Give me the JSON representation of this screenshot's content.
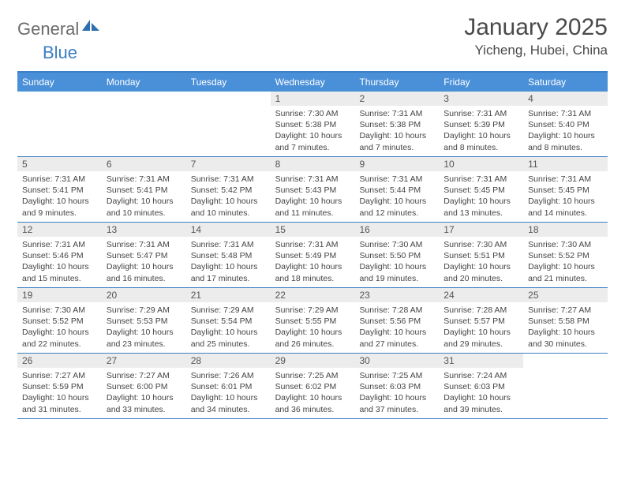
{
  "brand": {
    "general": "General",
    "blue": "Blue"
  },
  "title": "January 2025",
  "location": "Yicheng, Hubei, China",
  "colors": {
    "header_bg": "#4a90d9",
    "rule": "#3b7fc4",
    "dayshade": "#ececec",
    "text": "#444444",
    "logo_gray": "#6b6b6b",
    "logo_blue": "#3b7fc4"
  },
  "day_headers": [
    "Sunday",
    "Monday",
    "Tuesday",
    "Wednesday",
    "Thursday",
    "Friday",
    "Saturday"
  ],
  "weeks": [
    [
      {
        "n": "",
        "lines": []
      },
      {
        "n": "",
        "lines": []
      },
      {
        "n": "",
        "lines": []
      },
      {
        "n": "1",
        "lines": [
          "Sunrise: 7:30 AM",
          "Sunset: 5:38 PM",
          "Daylight: 10 hours",
          "and 7 minutes."
        ]
      },
      {
        "n": "2",
        "lines": [
          "Sunrise: 7:31 AM",
          "Sunset: 5:38 PM",
          "Daylight: 10 hours",
          "and 7 minutes."
        ]
      },
      {
        "n": "3",
        "lines": [
          "Sunrise: 7:31 AM",
          "Sunset: 5:39 PM",
          "Daylight: 10 hours",
          "and 8 minutes."
        ]
      },
      {
        "n": "4",
        "lines": [
          "Sunrise: 7:31 AM",
          "Sunset: 5:40 PM",
          "Daylight: 10 hours",
          "and 8 minutes."
        ]
      }
    ],
    [
      {
        "n": "5",
        "lines": [
          "Sunrise: 7:31 AM",
          "Sunset: 5:41 PM",
          "Daylight: 10 hours",
          "and 9 minutes."
        ]
      },
      {
        "n": "6",
        "lines": [
          "Sunrise: 7:31 AM",
          "Sunset: 5:41 PM",
          "Daylight: 10 hours",
          "and 10 minutes."
        ]
      },
      {
        "n": "7",
        "lines": [
          "Sunrise: 7:31 AM",
          "Sunset: 5:42 PM",
          "Daylight: 10 hours",
          "and 10 minutes."
        ]
      },
      {
        "n": "8",
        "lines": [
          "Sunrise: 7:31 AM",
          "Sunset: 5:43 PM",
          "Daylight: 10 hours",
          "and 11 minutes."
        ]
      },
      {
        "n": "9",
        "lines": [
          "Sunrise: 7:31 AM",
          "Sunset: 5:44 PM",
          "Daylight: 10 hours",
          "and 12 minutes."
        ]
      },
      {
        "n": "10",
        "lines": [
          "Sunrise: 7:31 AM",
          "Sunset: 5:45 PM",
          "Daylight: 10 hours",
          "and 13 minutes."
        ]
      },
      {
        "n": "11",
        "lines": [
          "Sunrise: 7:31 AM",
          "Sunset: 5:45 PM",
          "Daylight: 10 hours",
          "and 14 minutes."
        ]
      }
    ],
    [
      {
        "n": "12",
        "lines": [
          "Sunrise: 7:31 AM",
          "Sunset: 5:46 PM",
          "Daylight: 10 hours",
          "and 15 minutes."
        ]
      },
      {
        "n": "13",
        "lines": [
          "Sunrise: 7:31 AM",
          "Sunset: 5:47 PM",
          "Daylight: 10 hours",
          "and 16 minutes."
        ]
      },
      {
        "n": "14",
        "lines": [
          "Sunrise: 7:31 AM",
          "Sunset: 5:48 PM",
          "Daylight: 10 hours",
          "and 17 minutes."
        ]
      },
      {
        "n": "15",
        "lines": [
          "Sunrise: 7:31 AM",
          "Sunset: 5:49 PM",
          "Daylight: 10 hours",
          "and 18 minutes."
        ]
      },
      {
        "n": "16",
        "lines": [
          "Sunrise: 7:30 AM",
          "Sunset: 5:50 PM",
          "Daylight: 10 hours",
          "and 19 minutes."
        ]
      },
      {
        "n": "17",
        "lines": [
          "Sunrise: 7:30 AM",
          "Sunset: 5:51 PM",
          "Daylight: 10 hours",
          "and 20 minutes."
        ]
      },
      {
        "n": "18",
        "lines": [
          "Sunrise: 7:30 AM",
          "Sunset: 5:52 PM",
          "Daylight: 10 hours",
          "and 21 minutes."
        ]
      }
    ],
    [
      {
        "n": "19",
        "lines": [
          "Sunrise: 7:30 AM",
          "Sunset: 5:52 PM",
          "Daylight: 10 hours",
          "and 22 minutes."
        ]
      },
      {
        "n": "20",
        "lines": [
          "Sunrise: 7:29 AM",
          "Sunset: 5:53 PM",
          "Daylight: 10 hours",
          "and 23 minutes."
        ]
      },
      {
        "n": "21",
        "lines": [
          "Sunrise: 7:29 AM",
          "Sunset: 5:54 PM",
          "Daylight: 10 hours",
          "and 25 minutes."
        ]
      },
      {
        "n": "22",
        "lines": [
          "Sunrise: 7:29 AM",
          "Sunset: 5:55 PM",
          "Daylight: 10 hours",
          "and 26 minutes."
        ]
      },
      {
        "n": "23",
        "lines": [
          "Sunrise: 7:28 AM",
          "Sunset: 5:56 PM",
          "Daylight: 10 hours",
          "and 27 minutes."
        ]
      },
      {
        "n": "24",
        "lines": [
          "Sunrise: 7:28 AM",
          "Sunset: 5:57 PM",
          "Daylight: 10 hours",
          "and 29 minutes."
        ]
      },
      {
        "n": "25",
        "lines": [
          "Sunrise: 7:27 AM",
          "Sunset: 5:58 PM",
          "Daylight: 10 hours",
          "and 30 minutes."
        ]
      }
    ],
    [
      {
        "n": "26",
        "lines": [
          "Sunrise: 7:27 AM",
          "Sunset: 5:59 PM",
          "Daylight: 10 hours",
          "and 31 minutes."
        ]
      },
      {
        "n": "27",
        "lines": [
          "Sunrise: 7:27 AM",
          "Sunset: 6:00 PM",
          "Daylight: 10 hours",
          "and 33 minutes."
        ]
      },
      {
        "n": "28",
        "lines": [
          "Sunrise: 7:26 AM",
          "Sunset: 6:01 PM",
          "Daylight: 10 hours",
          "and 34 minutes."
        ]
      },
      {
        "n": "29",
        "lines": [
          "Sunrise: 7:25 AM",
          "Sunset: 6:02 PM",
          "Daylight: 10 hours",
          "and 36 minutes."
        ]
      },
      {
        "n": "30",
        "lines": [
          "Sunrise: 7:25 AM",
          "Sunset: 6:03 PM",
          "Daylight: 10 hours",
          "and 37 minutes."
        ]
      },
      {
        "n": "31",
        "lines": [
          "Sunrise: 7:24 AM",
          "Sunset: 6:03 PM",
          "Daylight: 10 hours",
          "and 39 minutes."
        ]
      },
      {
        "n": "",
        "lines": []
      }
    ]
  ]
}
